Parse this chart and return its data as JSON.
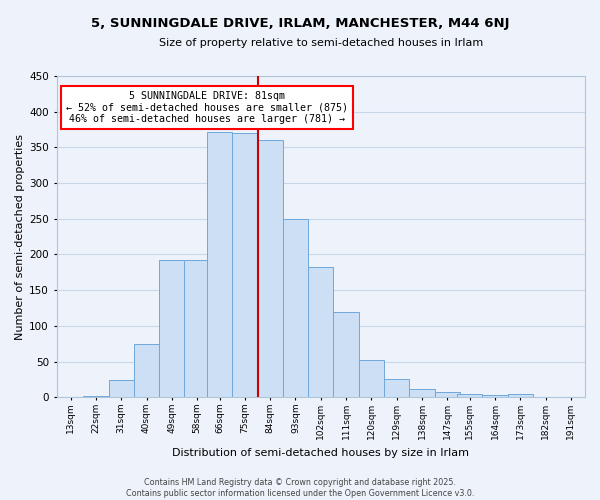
{
  "title": "5, SUNNINGDALE DRIVE, IRLAM, MANCHESTER, M44 6NJ",
  "subtitle": "Size of property relative to semi-detached houses in Irlam",
  "xlabel": "Distribution of semi-detached houses by size in Irlam",
  "ylabel": "Number of semi-detached properties",
  "bin_labels": [
    "13sqm",
    "22sqm",
    "31sqm",
    "40sqm",
    "49sqm",
    "58sqm",
    "66sqm",
    "75sqm",
    "84sqm",
    "93sqm",
    "102sqm",
    "111sqm",
    "120sqm",
    "129sqm",
    "138sqm",
    "147sqm",
    "155sqm",
    "164sqm",
    "173sqm",
    "182sqm",
    "191sqm"
  ],
  "bin_values": [
    0,
    2,
    24,
    75,
    192,
    192,
    372,
    370,
    360,
    250,
    183,
    120,
    52,
    25,
    12,
    8,
    5,
    3,
    4,
    0,
    0
  ],
  "bar_color": "#ccdff5",
  "bar_edge_color": "#6fa8dc",
  "grid_color": "#c8d8ea",
  "background_color": "#eef3fb",
  "marker_line_color": "#cc0000",
  "annotation_line1": "5 SUNNINGDALE DRIVE: 81sqm",
  "annotation_line2": "← 52% of semi-detached houses are smaller (875)",
  "annotation_line3": "46% of semi-detached houses are larger (781) →",
  "ylim": [
    0,
    450
  ],
  "yticks": [
    0,
    50,
    100,
    150,
    200,
    250,
    300,
    350,
    400,
    450
  ],
  "footer_line1": "Contains HM Land Registry data © Crown copyright and database right 2025.",
  "footer_line2": "Contains public sector information licensed under the Open Government Licence v3.0."
}
